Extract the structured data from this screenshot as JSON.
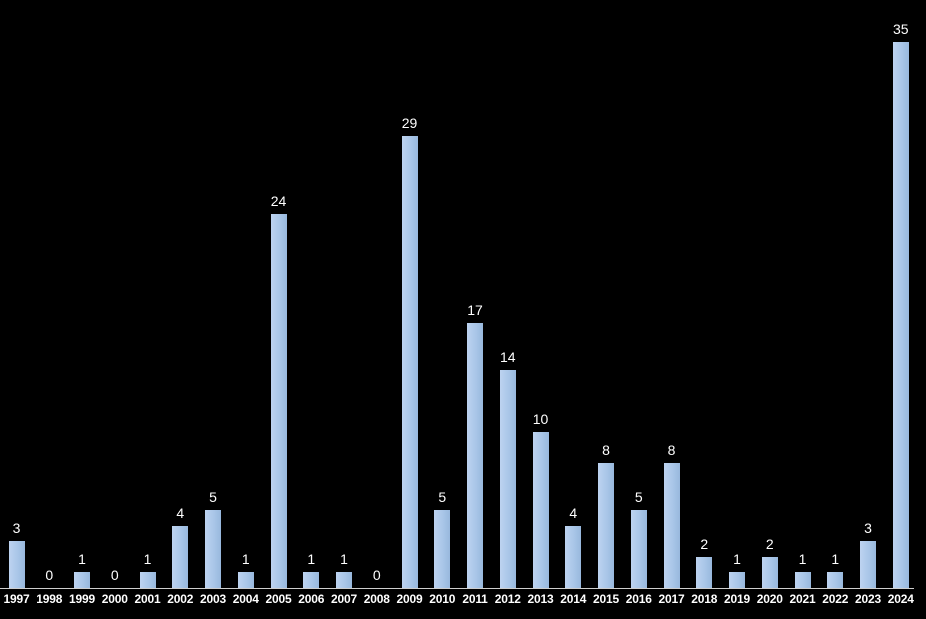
{
  "chart_data": {
    "type": "bar",
    "title": "",
    "xlabel": "",
    "ylabel": "",
    "categories": [
      "1997",
      "1998",
      "1999",
      "2000",
      "2001",
      "2002",
      "2003",
      "2004",
      "2005",
      "2006",
      "2007",
      "2008",
      "2009",
      "2010",
      "2011",
      "2012",
      "2013",
      "2014",
      "2015",
      "2016",
      "2017",
      "2018",
      "2019",
      "2020",
      "2021",
      "2022",
      "2023",
      "2024"
    ],
    "values": [
      3,
      0,
      1,
      0,
      1,
      4,
      5,
      1,
      24,
      1,
      1,
      0,
      29,
      5,
      17,
      14,
      10,
      4,
      8,
      5,
      8,
      2,
      1,
      2,
      1,
      1,
      3,
      35
    ],
    "ylim": [
      0,
      35
    ],
    "grid": false,
    "legend": null,
    "data_labels_shown": true,
    "colors": {
      "background": "#000000",
      "bar_fill": "#a9c6e8",
      "bar_fill_gradient": [
        "#bdd3f0",
        "#98b8dd"
      ],
      "axis_line": "#cfcfcf",
      "value_label": "#ffffff",
      "tick_label": "#ffffff"
    }
  }
}
